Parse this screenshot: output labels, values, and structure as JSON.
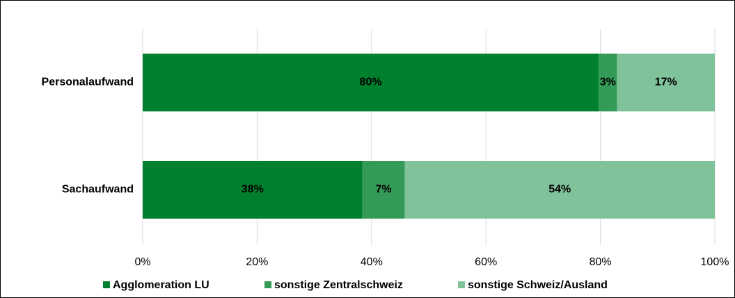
{
  "chart_data": {
    "type": "stacked_barh",
    "categories": [
      "Personalaufwand",
      "Sachaufwand"
    ],
    "series": [
      {
        "name": "Agglomeration LU",
        "color": "#00802f",
        "values": [
          79.7,
          38.4
        ],
        "value_labels": [
          "80%",
          "38%"
        ]
      },
      {
        "name": "sonstige Zentralschweiz",
        "color": "#339a57",
        "values": [
          3.2,
          7.4
        ],
        "value_labels": [
          "3%",
          "7%"
        ]
      },
      {
        "name": "sonstige Schweiz/Ausland",
        "color": "#80c29a",
        "values": [
          17.1,
          54.2
        ],
        "value_labels": [
          "17%",
          "54%"
        ]
      }
    ],
    "xlim": [
      0,
      100
    ],
    "xticks": [
      {
        "value": 0,
        "label": "0%"
      },
      {
        "value": 20,
        "label": "20%"
      },
      {
        "value": 40,
        "label": "40%"
      },
      {
        "value": 60,
        "label": "60%"
      },
      {
        "value": 80,
        "label": "80%"
      },
      {
        "value": 100,
        "label": "100%"
      }
    ],
    "grid": true,
    "legend": "bottom"
  }
}
